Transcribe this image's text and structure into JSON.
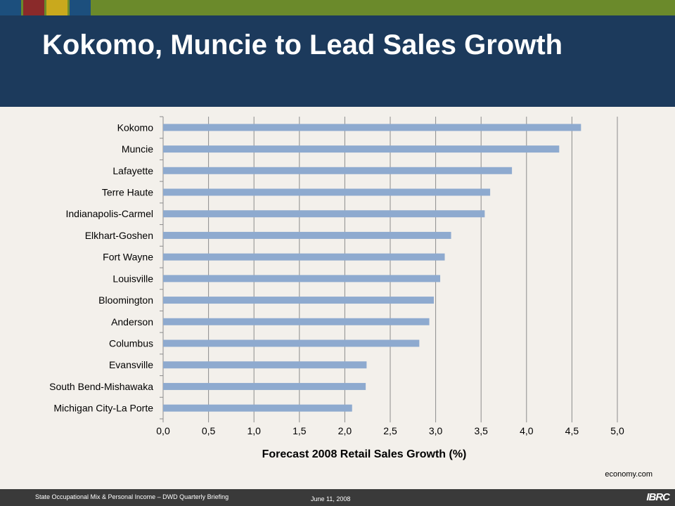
{
  "slide": {
    "title": "Kokomo, Muncie to Lead Sales Growth",
    "source": "economy.com",
    "footer_text": "State Occupational Mix & Personal Income – DWD Quarterly Briefing",
    "footer_date": "June 11, 2008",
    "logo": "IBRC"
  },
  "colors": {
    "header": "#1c3a5c",
    "top_band": "#6b8a2b",
    "bar": "#8eaacf",
    "squares": [
      "#1c4f7d",
      "#8a2a2a",
      "#c9a91d",
      "#1c4f7d"
    ]
  },
  "chart_data": {
    "type": "bar",
    "orientation": "horizontal",
    "categories": [
      "Kokomo",
      "Muncie",
      "Lafayette",
      "Terre Haute",
      "Indianapolis-Carmel",
      "Elkhart-Goshen",
      "Fort Wayne",
      "Louisville",
      "Bloomington",
      "Anderson",
      "Columbus",
      "Evansville",
      "South Bend-Mishawaka",
      "Michigan City-La Porte"
    ],
    "values": [
      4.6,
      4.36,
      3.84,
      3.6,
      3.54,
      3.17,
      3.1,
      3.05,
      2.98,
      2.93,
      2.82,
      2.24,
      2.23,
      2.08
    ],
    "xlabel": "Forecast 2008 Retail Sales Growth (%)",
    "xlim": [
      0,
      5
    ],
    "xticks": [
      "0,0",
      "0,5",
      "1,0",
      "1,5",
      "2,0",
      "2,5",
      "3,0",
      "3,5",
      "4,0",
      "4,5",
      "5,0"
    ],
    "grid": "vertical",
    "legend": "none"
  }
}
